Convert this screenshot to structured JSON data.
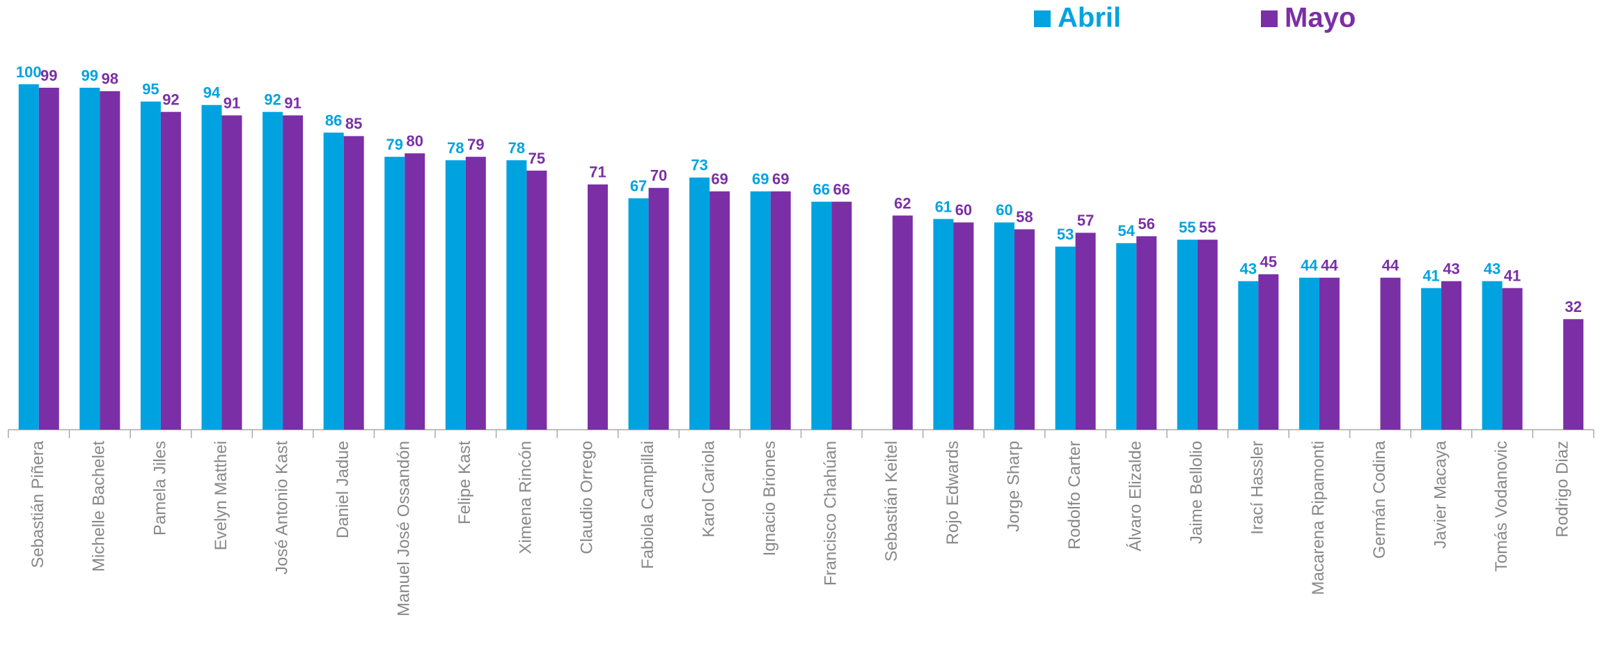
{
  "chart_data": {
    "type": "bar",
    "categories": [
      "Sebastián Piñera",
      "Michelle Bachelet",
      "Pamela Jiles",
      "Evelyn Matthei",
      "José Antonio Kast",
      "Daniel Jadue",
      "Manuel José Ossandón",
      "Felipe Kast",
      "Ximena Rincón",
      "Claudio Orrego",
      "Fabiola Campillai",
      "Karol Cariola",
      "Ignacio Briones",
      "Francisco Chahúan",
      "Sebastián Keitel",
      "Rojo Edwards",
      "Jorge Sharp",
      "Rodolfo Carter",
      "Álvaro Elizalde",
      "Jaime Bellolio",
      "Irací Hassler",
      "Macarena Ripamonti",
      "Germán Codina",
      "Javier Macaya",
      "Tomás Vodanovic",
      "Rodrigo Diaz"
    ],
    "series": [
      {
        "name": "Abril",
        "color": "#00a3e0",
        "values": [
          100,
          99,
          95,
          94,
          92,
          86,
          79,
          78,
          78,
          null,
          67,
          73,
          69,
          66,
          null,
          61,
          60,
          53,
          54,
          55,
          43,
          44,
          null,
          41,
          43,
          null
        ]
      },
      {
        "name": "Mayo",
        "color": "#7b2fa6",
        "values": [
          99,
          98,
          92,
          91,
          91,
          85,
          80,
          79,
          75,
          71,
          70,
          69,
          69,
          66,
          62,
          60,
          58,
          57,
          56,
          55,
          45,
          44,
          44,
          43,
          41,
          32
        ]
      }
    ],
    "ylim": [
      0,
      100
    ]
  }
}
